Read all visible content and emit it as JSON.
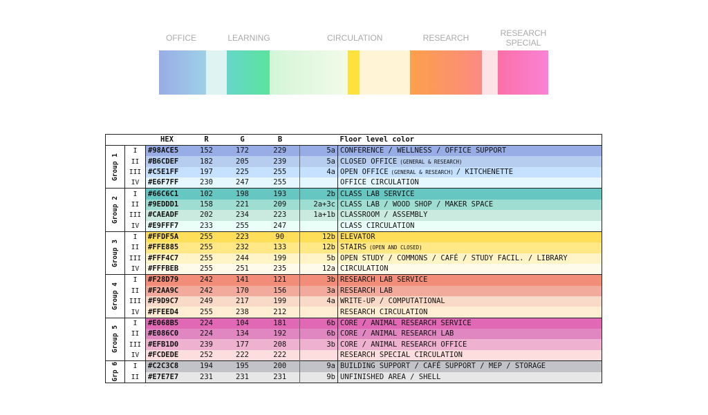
{
  "legend": {
    "labels": [
      "OFFICE",
      "LEARNING",
      "CIRCULATION",
      "RESEARCH",
      "RESEARCH SPECIAL"
    ]
  },
  "table": {
    "headers": [
      "HEX",
      "R",
      "G",
      "B",
      "Floor level color"
    ],
    "groups": [
      {
        "name": "Group 1",
        "rows": [
          {
            "level": "I",
            "hex": "#98ACE5",
            "r": 152,
            "g": 172,
            "b": 229,
            "code": "5a",
            "label": [
              {
                "text": "CONFERENCE / WELLNESS / OFFICE SUPPORT"
              }
            ]
          },
          {
            "level": "II",
            "hex": "#B6CDEF",
            "r": 182,
            "g": 205,
            "b": 239,
            "code": "5a",
            "label": [
              {
                "text": "CLOSED OFFICE"
              },
              {
                "text": "(GENERAL & RESEARCH)",
                "small": true
              }
            ]
          },
          {
            "level": "III",
            "hex": "#C5E1FF",
            "r": 197,
            "g": 225,
            "b": 255,
            "code": "4a",
            "label": [
              {
                "text": "OPEN OFFICE"
              },
              {
                "text": "(GENERAL & RESEARCH)",
                "small": true
              },
              {
                "text": "/ KITCHENETTE"
              }
            ]
          },
          {
            "level": "IV",
            "hex": "#E6F7FF",
            "r": 230,
            "g": 247,
            "b": 255,
            "label": [
              {
                "text": "OFFICE CIRCULATION"
              }
            ]
          }
        ]
      },
      {
        "name": "Group 2",
        "rows": [
          {
            "level": "I",
            "hex": "#66C6C1",
            "r": 102,
            "g": 198,
            "b": 193,
            "code": "2b",
            "label": [
              {
                "text": "CLASS LAB SERVICE"
              }
            ]
          },
          {
            "level": "II",
            "hex": "#9EDDD1",
            "r": 158,
            "g": 221,
            "b": 209,
            "code": "2a+3c",
            "label": [
              {
                "text": "CLASS LAB / WOOD SHOP / MAKER SPACE"
              }
            ]
          },
          {
            "level": "III",
            "hex": "#CAEADF",
            "r": 202,
            "g": 234,
            "b": 223,
            "code": "1a+1b",
            "label": [
              {
                "text": "CLASSROOM / ASSEMBLY"
              }
            ]
          },
          {
            "level": "IV",
            "hex": "#E9FFF7",
            "r": 233,
            "g": 255,
            "b": 247,
            "label": [
              {
                "text": "CLASS CIRCULATION"
              }
            ]
          }
        ]
      },
      {
        "name": "Group 3",
        "rows": [
          {
            "level": "I",
            "hex": "#FFDF5A",
            "r": 255,
            "g": 223,
            "b": 90,
            "code": "12b",
            "label": [
              {
                "text": "ELEVATOR"
              }
            ]
          },
          {
            "level": "II",
            "hex": "#FFE885",
            "r": 255,
            "g": 232,
            "b": 133,
            "code": "12b",
            "label": [
              {
                "text": "STAIRS"
              },
              {
                "text": "(OPEN AND CLOSED)",
                "small": true
              }
            ]
          },
          {
            "level": "III",
            "hex": "#FFF4C7",
            "r": 255,
            "g": 244,
            "b": 199,
            "code": "5b",
            "label": [
              {
                "text": "OPEN STUDY / COMMONS / CAFÉ / STUDY FACIL. / LIBRARY"
              }
            ]
          },
          {
            "level": "IV",
            "hex": "#FFFBEB",
            "r": 255,
            "g": 251,
            "b": 235,
            "code": "12a",
            "label": [
              {
                "text": "CIRCULATION"
              }
            ]
          }
        ]
      },
      {
        "name": "Group 4",
        "rows": [
          {
            "level": "I",
            "hex": "#F28D79",
            "r": 242,
            "g": 141,
            "b": 121,
            "code": "3b",
            "label": [
              {
                "text": "RESEARCH LAB SERVICE"
              }
            ]
          },
          {
            "level": "II",
            "hex": "#F2AA9C",
            "r": 242,
            "g": 170,
            "b": 156,
            "code": "3a",
            "label": [
              {
                "text": "RESEARCH LAB"
              }
            ]
          },
          {
            "level": "III",
            "hex": "#F9D9C7",
            "r": 249,
            "g": 217,
            "b": 199,
            "code": "4a",
            "label": [
              {
                "text": "WRITE-UP / COMPUTATIONAL"
              }
            ]
          },
          {
            "level": "IV",
            "hex": "#FFEED4",
            "r": 255,
            "g": 238,
            "b": 212,
            "label": [
              {
                "text": "RESEARCH CIRCULATION"
              }
            ]
          }
        ]
      },
      {
        "name": "Group 5",
        "rows": [
          {
            "level": "I",
            "hex": "#E068B5",
            "r": 224,
            "g": 104,
            "b": 181,
            "code": "6b",
            "label": [
              {
                "text": "CORE / ANIMAL RESEARCH SERVICE"
              }
            ]
          },
          {
            "level": "II",
            "hex": "#E086C0",
            "r": 224,
            "g": 134,
            "b": 192,
            "code": "6b",
            "label": [
              {
                "text": "CORE / ANIMAL RESEARCH LAB"
              }
            ]
          },
          {
            "level": "III",
            "hex": "#EFB1D0",
            "r": 239,
            "g": 177,
            "b": 208,
            "code": "3b",
            "label": [
              {
                "text": "CORE / ANIMAL RESEARCH OFFICE"
              }
            ]
          },
          {
            "level": "IV",
            "hex": "#FCDEDE",
            "r": 252,
            "g": 222,
            "b": 222,
            "label": [
              {
                "text": "RESEARCH SPECIAL CIRCULATION"
              }
            ]
          }
        ]
      },
      {
        "name": "Grp 6",
        "rows": [
          {
            "level": "I",
            "hex": "#C2C3C8",
            "r": 194,
            "g": 195,
            "b": 200,
            "code": "9a",
            "label": [
              {
                "text": "BUILDING SUPPORT / CAFÉ SUPPORT / MEP / STORAGE"
              }
            ]
          },
          {
            "level": "II",
            "hex": "#E7E7E7",
            "r": 231,
            "g": 231,
            "b": 231,
            "code": "9b",
            "label": [
              {
                "text": "UNFINISHED AREA / SHELL"
              }
            ]
          }
        ]
      }
    ]
  }
}
